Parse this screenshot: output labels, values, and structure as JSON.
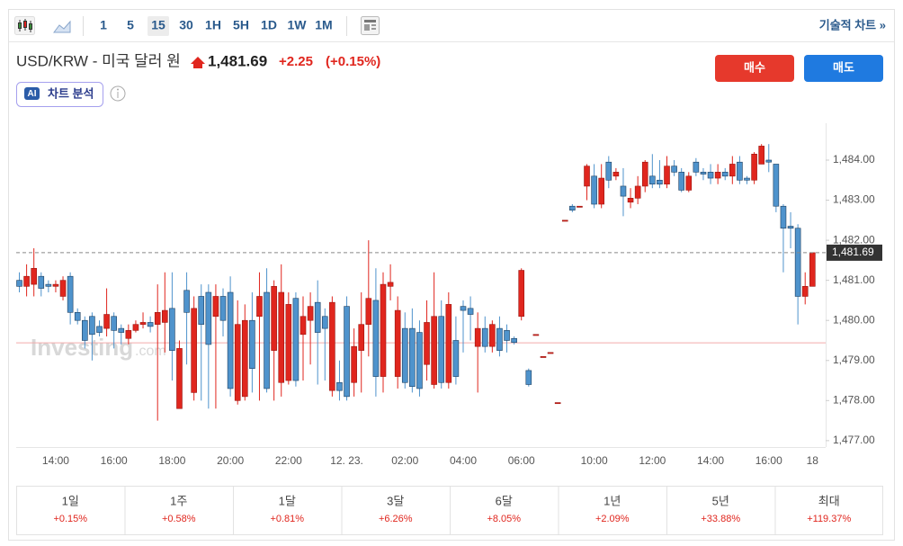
{
  "toolbar": {
    "intervals": [
      "1",
      "5",
      "15",
      "30",
      "1H",
      "5H",
      "1D",
      "1W",
      "1M"
    ],
    "selected": "15",
    "technical": "기술적 차트 »"
  },
  "header": {
    "title": "USD/KRW - 미국 달러 원",
    "price": "1,481.69",
    "change": "+2.25",
    "change_pct": "(+0.15%)",
    "buy": "매수",
    "sell": "매도",
    "ai_badge": "AI",
    "ai_label": "차트 분석"
  },
  "watermark": {
    "brand": "Investing",
    "suffix": ".com"
  },
  "chart_data": {
    "type": "candlestick",
    "up_color": "#e0261e",
    "down_color": "#4f93cc",
    "ref_color": "#f2aaaa",
    "reference_line": 1479.44,
    "ylim": [
      1476.84,
      1484.92
    ],
    "yticks": [
      {
        "value": 1477,
        "label": "1,477.00"
      },
      {
        "value": 1478,
        "label": "1,478.00"
      },
      {
        "value": 1479,
        "label": "1,479.00"
      },
      {
        "value": 1480,
        "label": "1,480.00"
      },
      {
        "value": 1481,
        "label": "1,481.00"
      },
      {
        "value": 1482,
        "label": "1,482.00"
      },
      {
        "value": 1483,
        "label": "1,483.00"
      },
      {
        "value": 1484,
        "label": "1,484.00"
      }
    ],
    "grid": false,
    "categories": [
      null,
      null,
      null,
      null,
      null,
      "14:00",
      null,
      null,
      null,
      null,
      null,
      null,
      null,
      "16:00",
      null,
      null,
      null,
      null,
      null,
      null,
      null,
      "18:00",
      null,
      null,
      null,
      null,
      null,
      null,
      null,
      "20:00",
      null,
      null,
      null,
      null,
      null,
      null,
      null,
      "22:00",
      null,
      null,
      null,
      null,
      null,
      null,
      null,
      "12. 23.",
      null,
      null,
      null,
      null,
      null,
      null,
      null,
      "02:00",
      null,
      null,
      null,
      null,
      null,
      null,
      null,
      "04:00",
      null,
      null,
      null,
      null,
      null,
      null,
      null,
      "06:00",
      null,
      null,
      null,
      null,
      null,
      null,
      null,
      null,
      null,
      "10:00",
      null,
      null,
      null,
      null,
      null,
      null,
      null,
      "12:00",
      null,
      null,
      null,
      null,
      null,
      null,
      null,
      "14:00",
      null,
      null,
      null,
      null,
      null,
      null,
      null,
      "16:00",
      null,
      null,
      null,
      null,
      null,
      "18"
    ],
    "open": [
      1481.0,
      1480.85,
      1480.9,
      1481.1,
      1480.9,
      1480.85,
      1480.6,
      1481.1,
      1480.2,
      1480.0,
      1480.1,
      1479.85,
      1479.8,
      1480.1,
      1479.8,
      1479.55,
      1479.75,
      1479.9,
      1479.95,
      1479.9,
      1479.95,
      1480.3,
      1477.8,
      1480.75,
      1478.2,
      1480.6,
      1480.7,
      1480.1,
      1480.6,
      1480.7,
      1478.0,
      1478.1,
      1480.0,
      1480.1,
      1480.7,
      1479.25,
      1478.45,
      1478.5,
      1480.55,
      1479.65,
      1480.0,
      1480.45,
      1480.1,
      1478.25,
      1478.45,
      1480.35,
      1478.45,
      1479.25,
      1479.9,
      1480.5,
      1478.6,
      1480.85,
      1478.6,
      1479.8,
      1479.8,
      1479.7,
      1478.9,
      1478.4,
      1480.1,
      1478.45,
      1479.5,
      1480.35,
      1480.3,
      1479.35,
      1479.8,
      1479.35,
      1479.8,
      1479.75,
      1479.55,
      1480.1,
      1478.75,
      1479.65,
      1479.1,
      1479.2,
      1477.95,
      1482.5,
      1482.85,
      1482.85,
      1483.35,
      1483.6,
      1482.9,
      1483.95,
      1483.6,
      1483.35,
      1482.95,
      1483.05,
      1483.35,
      1483.6,
      1483.5,
      1483.4,
      1483.85,
      1483.7,
      1483.25,
      1483.95,
      1483.7,
      1483.7,
      1483.55,
      1483.7,
      1483.6,
      1483.95,
      1483.55,
      1483.5,
      1483.9,
      1484.0,
      1483.9,
      1482.85,
      1482.35,
      1482.3,
      1480.6,
      1480.85
    ],
    "high": [
      1481.2,
      1481.4,
      1481.8,
      1481.2,
      1481.0,
      1481.0,
      1481.1,
      1481.2,
      1480.3,
      1480.1,
      1480.2,
      1480.0,
      1480.8,
      1480.2,
      1479.9,
      1479.9,
      1480.0,
      1480.2,
      1480.1,
      1480.9,
      1481.2,
      1481.2,
      1479.5,
      1481.2,
      1480.6,
      1480.9,
      1480.9,
      1480.9,
      1480.8,
      1481.1,
      1480.5,
      1480.4,
      1480.7,
      1481.2,
      1481.3,
      1481.0,
      1481.4,
      1480.7,
      1480.7,
      1480.6,
      1480.7,
      1481.0,
      1480.3,
      1480.6,
      1479.0,
      1480.6,
      1479.8,
      1480.7,
      1482.0,
      1481.3,
      1481.2,
      1481.4,
      1480.6,
      1480.2,
      1480.3,
      1480.0,
      1480.5,
      1481.2,
      1480.5,
      1480.7,
      1480.1,
      1480.5,
      1480.6,
      1480.2,
      1480.1,
      1480.0,
      1480.1,
      1479.9,
      1479.6,
      1481.3,
      1478.8,
      1479.65,
      1479.1,
      1479.2,
      1477.95,
      1482.5,
      1482.9,
      1482.85,
      1483.9,
      1483.9,
      1483.9,
      1484.1,
      1483.8,
      1483.8,
      1483.3,
      1483.6,
      1484.0,
      1484.15,
      1484.0,
      1484.1,
      1484.0,
      1483.8,
      1483.7,
      1484.05,
      1483.8,
      1483.9,
      1483.9,
      1483.8,
      1484.1,
      1484.1,
      1483.6,
      1484.2,
      1484.4,
      1484.4,
      1483.9,
      1482.9,
      1482.7,
      1482.4,
      1481.2,
      1481.7
    ],
    "low": [
      1480.7,
      1480.6,
      1480.6,
      1480.6,
      1480.7,
      1480.7,
      1480.5,
      1479.9,
      1479.9,
      1479.3,
      1479.0,
      1479.6,
      1479.6,
      1479.3,
      1479.4,
      1479.4,
      1479.7,
      1479.8,
      1479.7,
      1477.5,
      1479.2,
      1478.5,
      1477.8,
      1478.9,
      1478.0,
      1478.0,
      1477.8,
      1477.8,
      1479.6,
      1478.1,
      1477.9,
      1478.0,
      1478.2,
      1478.0,
      1478.2,
      1478.0,
      1478.1,
      1478.4,
      1478.35,
      1478.5,
      1478.9,
      1478.4,
      1478.5,
      1478.1,
      1478.0,
      1478.0,
      1478.1,
      1478.2,
      1479.1,
      1478.1,
      1478.2,
      1480.5,
      1478.3,
      1478.3,
      1478.2,
      1478.1,
      1478.5,
      1478.3,
      1478.3,
      1478.3,
      1478.4,
      1479.2,
      1479.5,
      1478.2,
      1479.2,
      1479.2,
      1479.1,
      1479.2,
      1479.4,
      1480.0,
      1478.35,
      1479.65,
      1479.1,
      1479.2,
      1477.95,
      1482.5,
      1482.7,
      1482.85,
      1483.0,
      1482.8,
      1482.8,
      1483.3,
      1483.5,
      1482.6,
      1482.8,
      1482.9,
      1483.2,
      1483.3,
      1483.3,
      1483.3,
      1483.6,
      1483.2,
      1483.2,
      1483.6,
      1483.5,
      1483.4,
      1483.4,
      1483.5,
      1483.4,
      1483.4,
      1483.4,
      1483.4,
      1483.9,
      1483.7,
      1482.7,
      1481.2,
      1481.8,
      1479.9,
      1480.4,
      1480.85
    ],
    "close": [
      1480.85,
      1481.1,
      1481.3,
      1480.8,
      1480.85,
      1480.9,
      1481.0,
      1480.2,
      1480.0,
      1479.5,
      1479.65,
      1479.7,
      1480.15,
      1479.75,
      1479.7,
      1479.75,
      1479.9,
      1479.95,
      1479.85,
      1480.2,
      1480.25,
      1479.25,
      1479.3,
      1480.2,
      1480.3,
      1479.9,
      1479.4,
      1480.6,
      1480.0,
      1478.3,
      1479.9,
      1480.0,
      1478.8,
      1480.6,
      1478.3,
      1480.85,
      1480.7,
      1480.4,
      1478.5,
      1480.1,
      1480.35,
      1479.7,
      1479.8,
      1480.45,
      1478.25,
      1478.1,
      1479.35,
      1479.9,
      1480.55,
      1478.6,
      1480.9,
      1480.95,
      1480.25,
      1478.45,
      1478.35,
      1478.3,
      1479.95,
      1480.1,
      1478.45,
      1480.4,
      1478.6,
      1480.25,
      1480.15,
      1479.8,
      1479.35,
      1479.9,
      1479.25,
      1479.5,
      1479.45,
      1481.25,
      1478.4,
      1479.65,
      1479.1,
      1479.2,
      1477.95,
      1482.5,
      1482.75,
      1482.85,
      1483.85,
      1482.9,
      1483.55,
      1483.5,
      1483.7,
      1483.1,
      1483.05,
      1483.35,
      1483.95,
      1483.4,
      1483.4,
      1483.85,
      1483.7,
      1483.25,
      1483.6,
      1483.7,
      1483.65,
      1483.55,
      1483.7,
      1483.6,
      1483.9,
      1483.5,
      1483.5,
      1484.15,
      1484.35,
      1483.95,
      1482.85,
      1482.3,
      1482.3,
      1480.6,
      1480.85,
      1481.69
    ]
  },
  "performance": [
    {
      "period": "1일",
      "change": "+0.15%"
    },
    {
      "period": "1주",
      "change": "+0.58%"
    },
    {
      "period": "1달",
      "change": "+0.81%"
    },
    {
      "period": "3달",
      "change": "+6.26%"
    },
    {
      "period": "6달",
      "change": "+8.05%"
    },
    {
      "period": "1년",
      "change": "+2.09%"
    },
    {
      "period": "5년",
      "change": "+33.88%"
    },
    {
      "period": "최대",
      "change": "+119.37%"
    }
  ]
}
